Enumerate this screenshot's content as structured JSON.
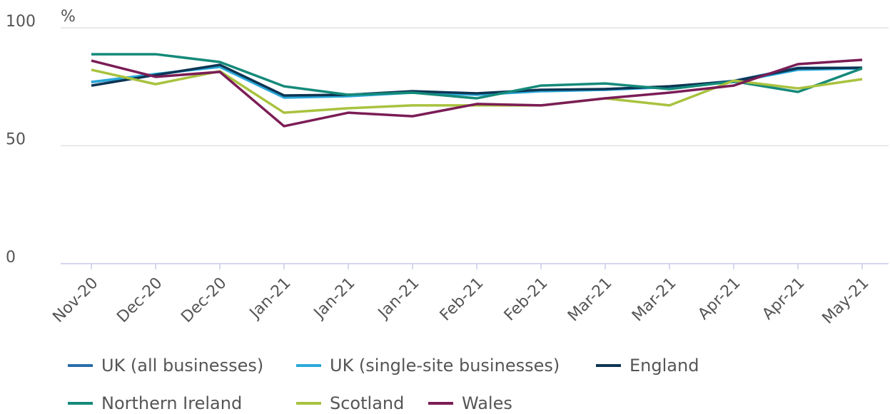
{
  "chart_data": {
    "type": "line",
    "y_label": "%",
    "categories": [
      "Nov-20",
      "Dec-20",
      "Dec-20",
      "Jan-21",
      "Jan-21",
      "Jan-21",
      "Feb-21",
      "Feb-21",
      "Mar-21",
      "Mar-21",
      "Apr-21",
      "Apr-21",
      "May-21"
    ],
    "ylim": [
      0,
      100
    ],
    "yticks": [
      0,
      50,
      100
    ],
    "grid": true,
    "series": [
      {
        "name": "UK (all businesses)",
        "color": "#2a6ea8",
        "values": [
          77,
          80,
          84,
          71,
          71.5,
          73,
          72,
          73.5,
          74,
          75,
          77.5,
          83,
          83
        ]
      },
      {
        "name": "UK (single-site businesses)",
        "color": "#2aa8d8",
        "values": [
          77,
          80.4,
          83.4,
          70.4,
          71,
          72.5,
          71.6,
          73.1,
          73.7,
          74.9,
          77,
          82.2,
          82.8
        ]
      },
      {
        "name": "England",
        "color": "#0d3553",
        "values": [
          75.5,
          80,
          84.3,
          71.3,
          71.6,
          73.1,
          72.2,
          73.7,
          74,
          75.2,
          77.3,
          82.8,
          83.1
        ]
      },
      {
        "name": "Northern Ireland",
        "color": "#158a7a",
        "values": [
          88.8,
          88.8,
          85.5,
          75.2,
          71.6,
          72.5,
          70.1,
          75.5,
          76.4,
          74,
          77.3,
          72.8,
          82.8
        ]
      },
      {
        "name": "Scotland",
        "color": "#a9c23f",
        "values": [
          82.2,
          76.1,
          81.6,
          64,
          65.9,
          67.1,
          67.1,
          67.1,
          70.1,
          67.1,
          77.6,
          74.3,
          78.2
        ]
      },
      {
        "name": "Wales",
        "color": "#7b1d56",
        "values": [
          86.1,
          79.2,
          81.3,
          58.3,
          64,
          62.5,
          67.7,
          67.1,
          70.1,
          72.5,
          75.5,
          84.6,
          86.4
        ]
      }
    ]
  }
}
